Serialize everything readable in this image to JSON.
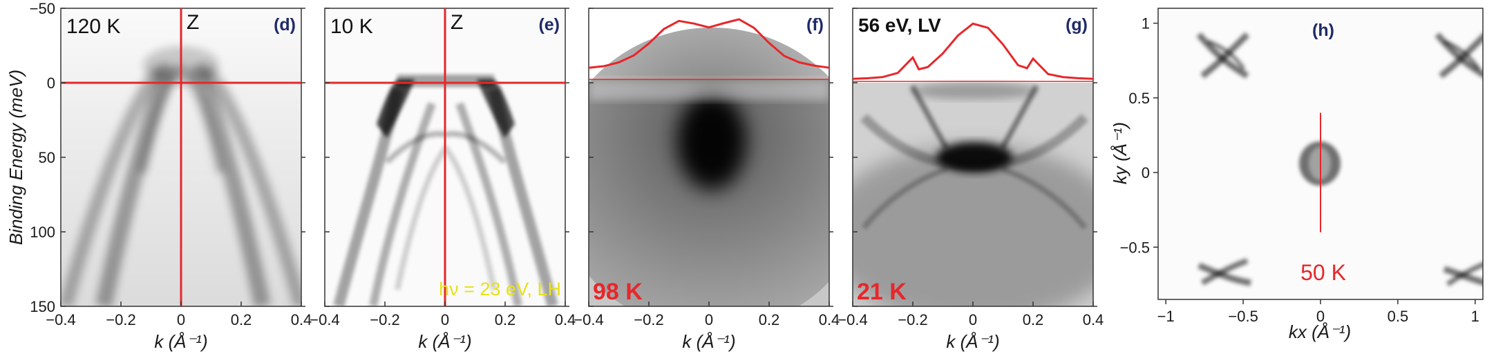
{
  "figure": {
    "y_axis_label": "Binding Energy (meV)",
    "k_axis_label": "k (Å⁻¹)",
    "arpes_y_ticks": [
      "−50",
      "0",
      "50",
      "100",
      "150"
    ],
    "arpes_x_ticks": [
      "−0.4",
      "−0.2",
      "0",
      "0.2",
      "0.4"
    ],
    "colors": {
      "red": "#e8262a",
      "yellow": "#e6e21a",
      "navy": "#1f2a66"
    }
  },
  "panels": [
    {
      "id": "d",
      "label": "(d)",
      "temperature": "120 K",
      "point": "Z"
    },
    {
      "id": "e",
      "label": "(e)",
      "temperature": "10 K",
      "point": "Z",
      "photon": "hν = 23 eV, LH"
    },
    {
      "id": "f",
      "label": "(f)",
      "temperature": "98 K"
    },
    {
      "id": "g",
      "label": "(g)",
      "temperature": "21 K",
      "photon": "56 eV, LV"
    }
  ],
  "map_panel": {
    "label": "(h)",
    "temperature": "50 K",
    "x_label": "kx (Å⁻¹)",
    "y_label": "ky (Å⁻¹)",
    "x_ticks": [
      "−1",
      "−0.5",
      "0",
      "0.5",
      "1"
    ],
    "y_ticks": [
      "1",
      "0.5",
      "0",
      "−0.5"
    ]
  },
  "chart_data": [
    {
      "type": "heatmap",
      "panel": "d",
      "xlabel": "k (Å⁻¹)",
      "ylabel": "Binding Energy (meV)",
      "xlim": [
        -0.4,
        0.4
      ],
      "ylim": [
        150,
        -50
      ],
      "cut_lines": {
        "k": 0,
        "energy": 0
      }
    },
    {
      "type": "heatmap",
      "panel": "e",
      "xlabel": "k (Å⁻¹)",
      "xlim": [
        -0.4,
        0.4
      ],
      "ylim": [
        150,
        -50
      ],
      "cut_lines": {
        "k": 0,
        "energy": 0
      }
    },
    {
      "type": "heatmap",
      "panel": "f",
      "xlabel": "k (Å⁻¹)",
      "xlim": [
        -0.4,
        0.4
      ],
      "ylim": [
        150,
        -50
      ],
      "mdc": {
        "k": [
          -0.4,
          -0.35,
          -0.3,
          -0.25,
          -0.2,
          -0.15,
          -0.1,
          -0.05,
          0,
          0.05,
          0.1,
          0.15,
          0.2,
          0.25,
          0.3,
          0.35,
          0.4
        ],
        "intensity": [
          0.1,
          0.13,
          0.2,
          0.33,
          0.55,
          0.82,
          0.97,
          0.92,
          0.85,
          0.93,
          1.0,
          0.84,
          0.56,
          0.32,
          0.2,
          0.14,
          0.1
        ]
      }
    },
    {
      "type": "heatmap",
      "panel": "g",
      "xlabel": "k (Å⁻¹)",
      "xlim": [
        -0.4,
        0.4
      ],
      "ylim": [
        150,
        -50
      ],
      "mdc": {
        "k": [
          -0.4,
          -0.35,
          -0.3,
          -0.25,
          -0.2,
          -0.18,
          -0.15,
          -0.1,
          -0.05,
          0,
          0.05,
          0.1,
          0.15,
          0.18,
          0.2,
          0.25,
          0.3,
          0.35,
          0.4
        ],
        "intensity": [
          0.02,
          0.03,
          0.05,
          0.12,
          0.38,
          0.18,
          0.22,
          0.45,
          0.75,
          0.95,
          0.88,
          0.6,
          0.25,
          0.2,
          0.36,
          0.1,
          0.05,
          0.03,
          0.02
        ]
      }
    },
    {
      "type": "heatmap",
      "panel": "h",
      "xlabel": "kx (Å⁻¹)",
      "ylabel": "ky (Å⁻¹)",
      "xlim": [
        -1.05,
        1.05
      ],
      "ylim": [
        -0.85,
        1.1
      ],
      "cut": {
        "kx": 0,
        "ky_range": [
          -0.4,
          0.4
        ]
      }
    }
  ]
}
